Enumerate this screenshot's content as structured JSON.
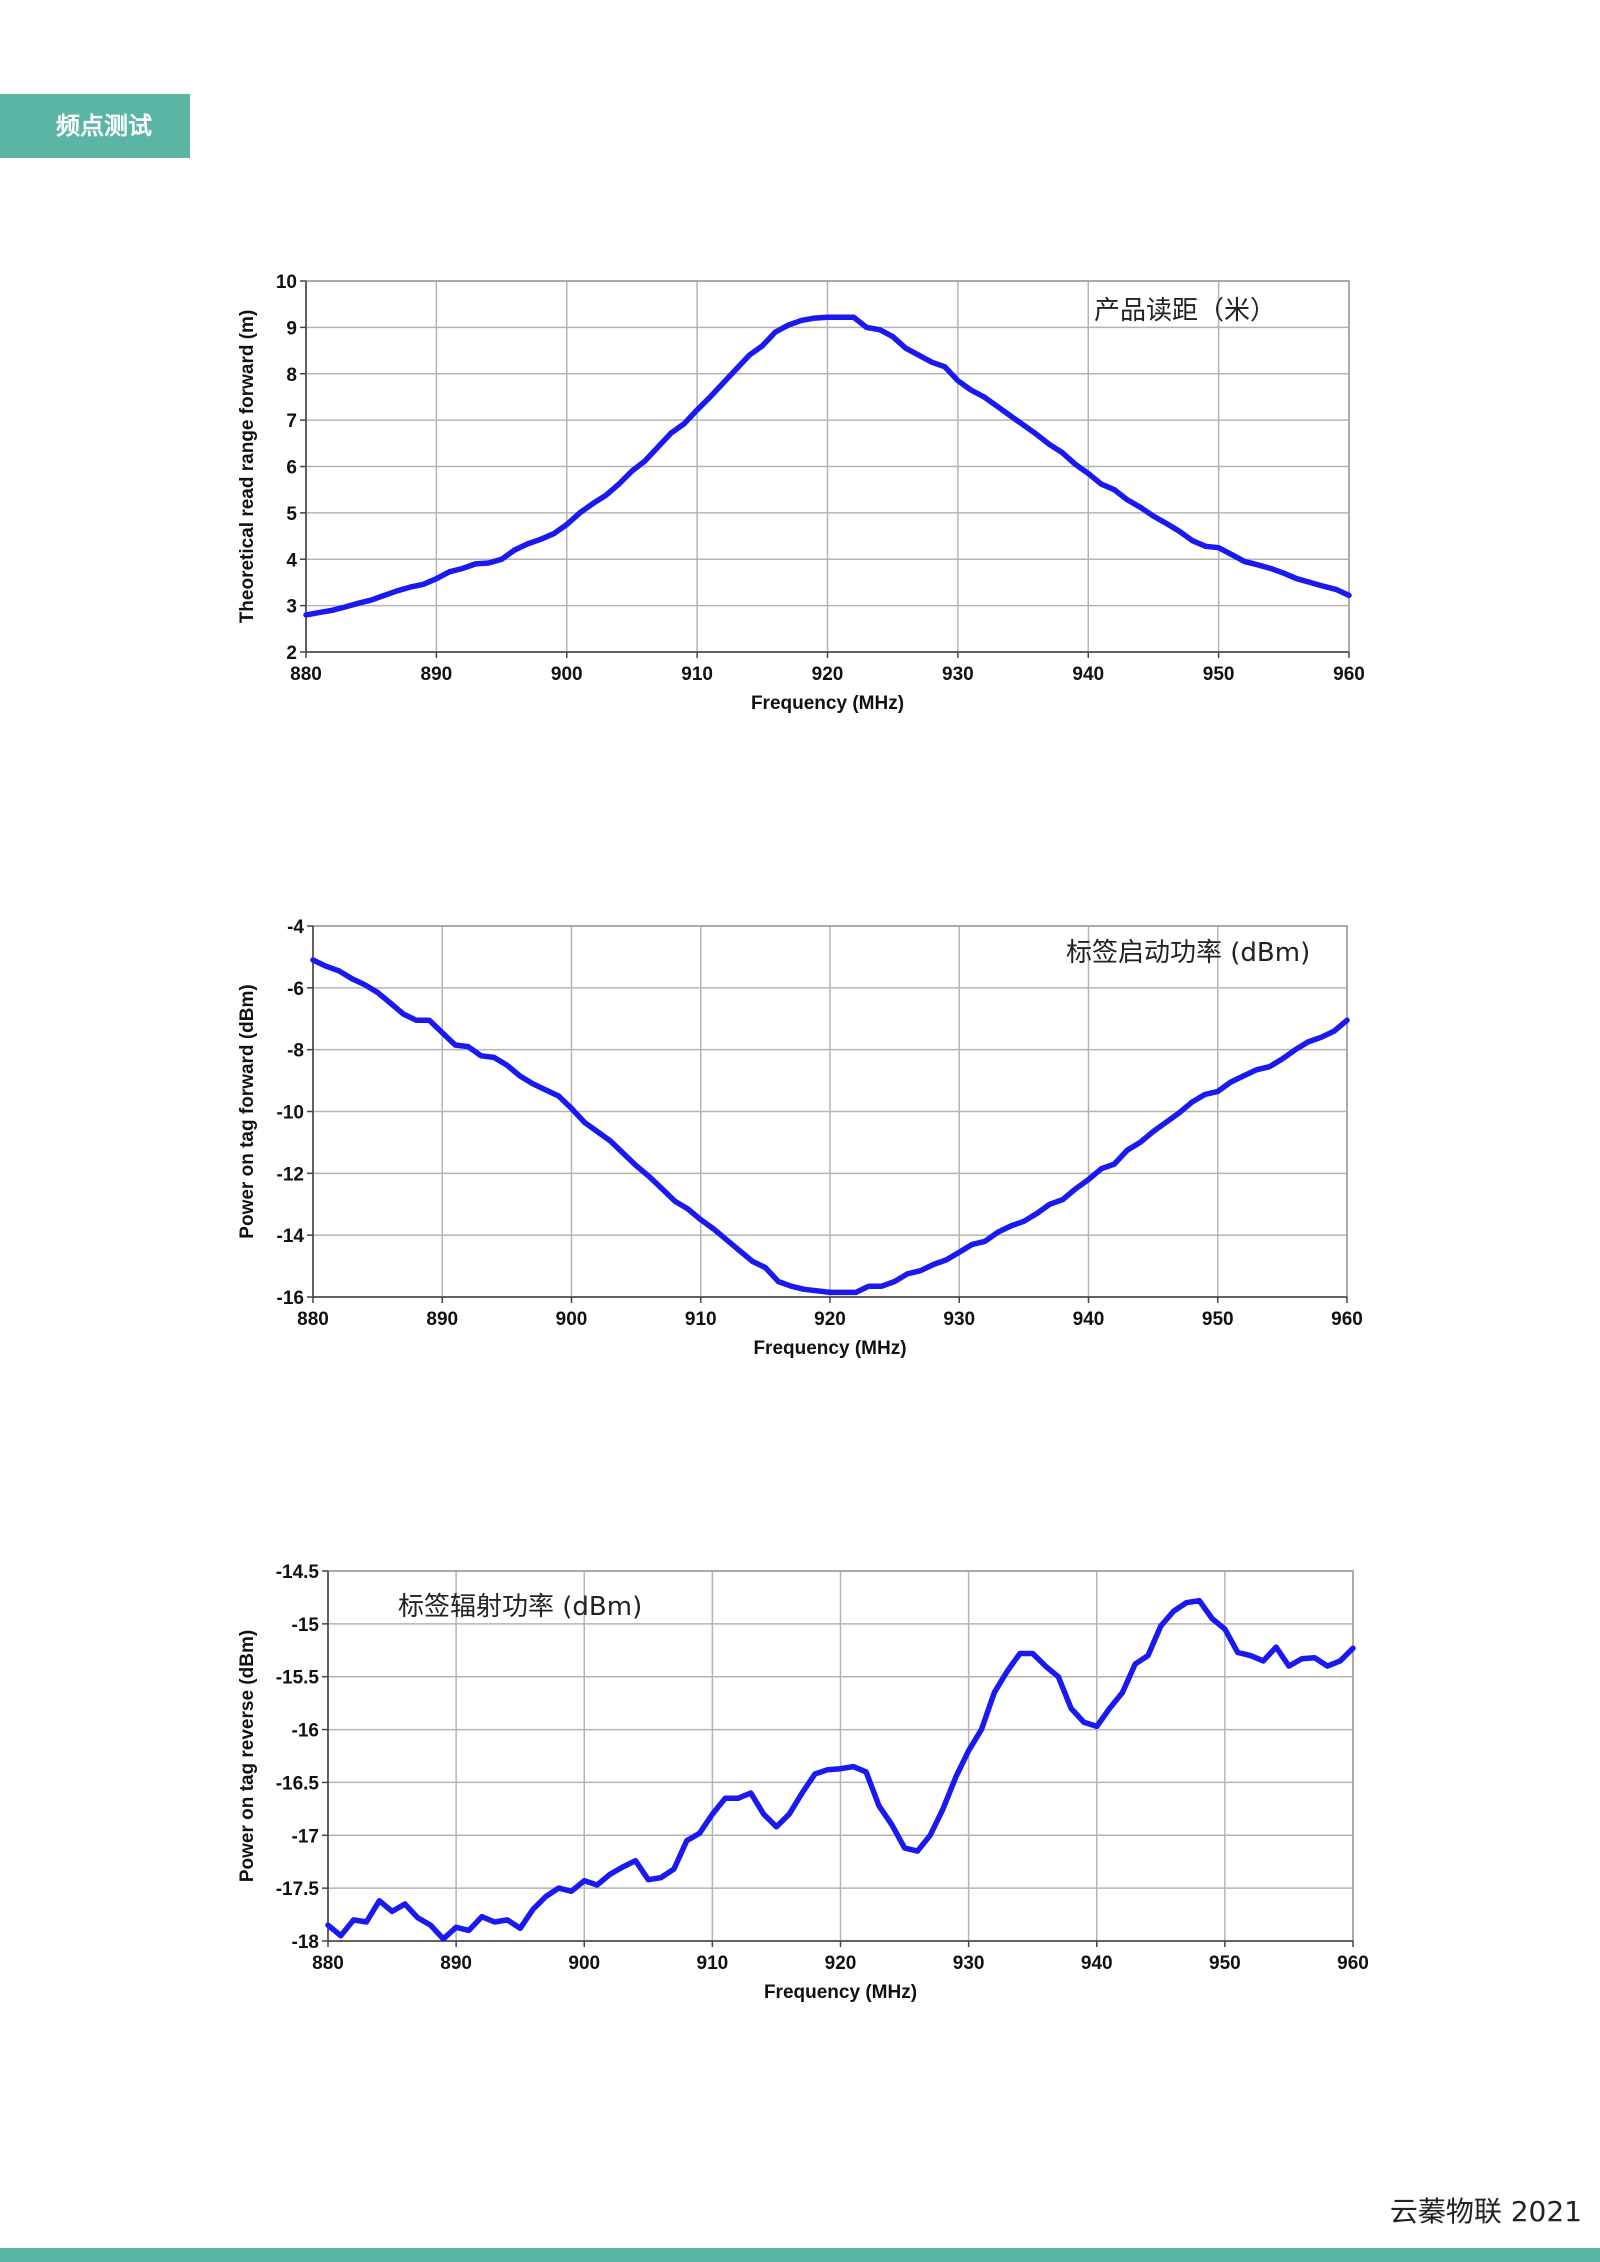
{
  "header": {
    "tag_label": "频点测试"
  },
  "footer": {
    "text": "云蓁物联 2021"
  },
  "colors": {
    "accent": "#5bb5a5",
    "series": "#1a1af0",
    "grid": "#b4b4b4"
  },
  "chart_data": [
    {
      "type": "line",
      "title": "",
      "annotation": "产品读距（米）",
      "xlabel": "Frequency (MHz)",
      "ylabel": "Theoretical read range forward (m)",
      "xlim": [
        880,
        960
      ],
      "ylim": [
        2,
        10
      ],
      "xticks": [
        880,
        890,
        900,
        910,
        920,
        930,
        940,
        950,
        960
      ],
      "yticks": [
        2,
        3,
        4,
        5,
        6,
        7,
        8,
        9,
        10
      ],
      "grid": true,
      "x": [
        880,
        881,
        882,
        883,
        884,
        885,
        886,
        887,
        888,
        889,
        890,
        891,
        892,
        893,
        894,
        895,
        896,
        897,
        898,
        899,
        900,
        901,
        902,
        903,
        904,
        905,
        906,
        907,
        908,
        909,
        910,
        911,
        912,
        913,
        914,
        915,
        916,
        917,
        918,
        919,
        920,
        921,
        922,
        923,
        924,
        925,
        926,
        927,
        928,
        929,
        930,
        931,
        932,
        933,
        934,
        935,
        936,
        937,
        938,
        939,
        940,
        941,
        942,
        943,
        944,
        945,
        946,
        947,
        948,
        949,
        950,
        951,
        952,
        953,
        954,
        955,
        956,
        957,
        958,
        959,
        960
      ],
      "series": [
        {
          "values": [
            2.8,
            2.85,
            2.9,
            2.97,
            3.05,
            3.12,
            3.22,
            3.32,
            3.4,
            3.46,
            3.58,
            3.73,
            3.8,
            3.9,
            3.92,
            4.0,
            4.2,
            4.33,
            4.43,
            4.55,
            4.75,
            5.0,
            5.2,
            5.38,
            5.62,
            5.9,
            6.12,
            6.42,
            6.72,
            6.92,
            7.22,
            7.5,
            7.8,
            8.1,
            8.4,
            8.6,
            8.9,
            9.05,
            9.15,
            9.2,
            9.22,
            9.22,
            9.22,
            9.0,
            8.95,
            8.8,
            8.55,
            8.4,
            8.25,
            8.15,
            7.85,
            7.65,
            7.5,
            7.3,
            7.1,
            6.9,
            6.7,
            6.48,
            6.3,
            6.05,
            5.85,
            5.62,
            5.5,
            5.28,
            5.12,
            4.93,
            4.77,
            4.6,
            4.4,
            4.28,
            4.25,
            4.1,
            3.95,
            3.88,
            3.8,
            3.7,
            3.58,
            3.5,
            3.42,
            3.35,
            3.22
          ]
        }
      ]
    },
    {
      "type": "line",
      "title": "",
      "annotation": "标签启动功率 (dBm)",
      "xlabel": "Frequency (MHz)",
      "ylabel": "Power on tag forward (dBm)",
      "xlim": [
        880,
        960
      ],
      "ylim": [
        -16,
        -4
      ],
      "xticks": [
        880,
        890,
        900,
        910,
        920,
        930,
        940,
        950,
        960
      ],
      "yticks": [
        -16,
        -14,
        -12,
        -10,
        -8,
        -6,
        -4
      ],
      "grid": true,
      "x": [
        880,
        881,
        882,
        883,
        884,
        885,
        886,
        887,
        888,
        889,
        890,
        891,
        892,
        893,
        894,
        895,
        896,
        897,
        898,
        899,
        900,
        901,
        902,
        903,
        904,
        905,
        906,
        907,
        908,
        909,
        910,
        911,
        912,
        913,
        914,
        915,
        916,
        917,
        918,
        919,
        920,
        921,
        922,
        923,
        924,
        925,
        926,
        927,
        928,
        929,
        930,
        931,
        932,
        933,
        934,
        935,
        936,
        937,
        938,
        939,
        940,
        941,
        942,
        943,
        944,
        945,
        946,
        947,
        948,
        949,
        950,
        951,
        952,
        953,
        954,
        955,
        956,
        957,
        958,
        959,
        960
      ],
      "series": [
        {
          "values": [
            -5.1,
            -5.3,
            -5.45,
            -5.7,
            -5.9,
            -6.15,
            -6.5,
            -6.85,
            -7.05,
            -7.05,
            -7.45,
            -7.85,
            -7.9,
            -8.2,
            -8.25,
            -8.5,
            -8.85,
            -9.1,
            -9.3,
            -9.5,
            -9.9,
            -10.35,
            -10.65,
            -10.95,
            -11.35,
            -11.75,
            -12.1,
            -12.5,
            -12.9,
            -13.15,
            -13.5,
            -13.8,
            -14.15,
            -14.5,
            -14.85,
            -15.05,
            -15.5,
            -15.65,
            -15.75,
            -15.8,
            -15.85,
            -15.85,
            -15.85,
            -15.65,
            -15.65,
            -15.5,
            -15.25,
            -15.15,
            -14.95,
            -14.8,
            -14.55,
            -14.3,
            -14.2,
            -13.9,
            -13.7,
            -13.55,
            -13.3,
            -13.0,
            -12.85,
            -12.5,
            -12.2,
            -11.85,
            -11.7,
            -11.25,
            -11.0,
            -10.65,
            -10.35,
            -10.05,
            -9.7,
            -9.45,
            -9.35,
            -9.05,
            -8.85,
            -8.65,
            -8.55,
            -8.3,
            -8.0,
            -7.75,
            -7.6,
            -7.4,
            -7.05
          ]
        }
      ]
    },
    {
      "type": "line",
      "title": "",
      "annotation": "标签辐射功率 (dBm)",
      "xlabel": "Frequency (MHz)",
      "ylabel": "Power on tag reverse (dBm)",
      "xlim": [
        880,
        960
      ],
      "ylim": [
        -18,
        -14.5
      ],
      "xticks": [
        880,
        890,
        900,
        910,
        920,
        930,
        940,
        950,
        960
      ],
      "yticks": [
        -18,
        -17.5,
        -17,
        -16.5,
        -16,
        -15.5,
        -15,
        -14.5
      ],
      "grid": true,
      "x": [
        880,
        881,
        882,
        883,
        884,
        885,
        886,
        887,
        888,
        889,
        890,
        891,
        892,
        893,
        894,
        895,
        896,
        897,
        898,
        899,
        900,
        901,
        902,
        903,
        904,
        905,
        906,
        907,
        908,
        909,
        910,
        911,
        912,
        913,
        914,
        915,
        916,
        917,
        918,
        919,
        920,
        921,
        922,
        923,
        924,
        925,
        926,
        927,
        928,
        929,
        930,
        931,
        932,
        933,
        934,
        935,
        936,
        937,
        938,
        939,
        940,
        941,
        942,
        943,
        944,
        945,
        946,
        947,
        948,
        949,
        950,
        951,
        952,
        953,
        954,
        955,
        956,
        957,
        958,
        959,
        960
      ],
      "series": [
        {
          "values": [
            -17.85,
            -17.95,
            -17.8,
            -17.82,
            -17.62,
            -17.72,
            -17.65,
            -17.78,
            -17.85,
            -17.98,
            -17.87,
            -17.9,
            -17.77,
            -17.82,
            -17.8,
            -17.88,
            -17.7,
            -17.58,
            -17.5,
            -17.53,
            -17.43,
            -17.47,
            -17.37,
            -17.3,
            -17.24,
            -17.42,
            -17.4,
            -17.32,
            -17.05,
            -16.98,
            -16.8,
            -16.65,
            -16.65,
            -16.6,
            -16.8,
            -16.92,
            -16.8,
            -16.6,
            -16.42,
            -16.38,
            -16.37,
            -16.35,
            -16.4,
            -16.72,
            -16.9,
            -17.12,
            -17.15,
            -17.0,
            -16.75,
            -16.45,
            -16.2,
            -16.0,
            -15.65,
            -15.45,
            -15.28,
            -15.28,
            -15.4,
            -15.5,
            -15.8,
            -15.93,
            -15.97,
            -15.8,
            -15.65,
            -15.38,
            -15.3,
            -15.02,
            -14.88,
            -14.8,
            -14.78,
            -14.95,
            -15.05,
            -15.27,
            -15.3,
            -15.35,
            -15.22,
            -15.4,
            -15.33,
            -15.32,
            -15.4,
            -15.35,
            -15.23
          ]
        }
      ]
    }
  ]
}
